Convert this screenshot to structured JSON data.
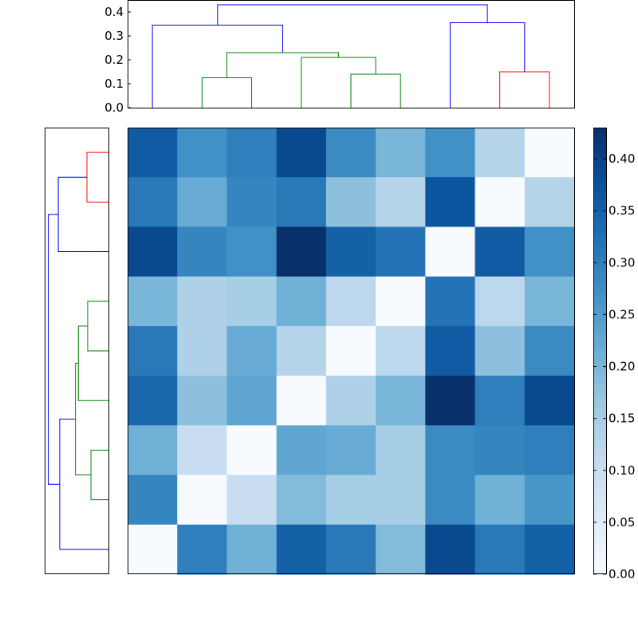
{
  "chart_data": {
    "type": "heatmap",
    "title": "",
    "rows": 9,
    "cols": 9,
    "values": [
      [
        0.36,
        0.27,
        0.3,
        0.39,
        0.28,
        0.2,
        0.27,
        0.13,
        0.0
      ],
      [
        0.31,
        0.22,
        0.29,
        0.31,
        0.18,
        0.13,
        0.37,
        0.0,
        0.13
      ],
      [
        0.39,
        0.29,
        0.27,
        0.43,
        0.35,
        0.32,
        0.0,
        0.36,
        0.27
      ],
      [
        0.2,
        0.14,
        0.15,
        0.21,
        0.12,
        0.0,
        0.32,
        0.12,
        0.2
      ],
      [
        0.31,
        0.14,
        0.22,
        0.13,
        0.0,
        0.12,
        0.36,
        0.18,
        0.28
      ],
      [
        0.34,
        0.18,
        0.23,
        0.0,
        0.14,
        0.2,
        0.43,
        0.3,
        0.39
      ],
      [
        0.21,
        0.1,
        0.0,
        0.23,
        0.22,
        0.15,
        0.28,
        0.29,
        0.3
      ],
      [
        0.29,
        0.0,
        0.1,
        0.19,
        0.15,
        0.15,
        0.28,
        0.21,
        0.26
      ],
      [
        0.0,
        0.3,
        0.21,
        0.35,
        0.31,
        0.19,
        0.39,
        0.31,
        0.35
      ]
    ],
    "colormap": "Blues",
    "vmin": 0,
    "vmax": 0.43,
    "colorbar_ticks": [
      "0.00",
      "0.05",
      "0.10",
      "0.15",
      "0.20",
      "0.25",
      "0.30",
      "0.35",
      "0.40"
    ],
    "top_dendrogram": {
      "yticks": [
        "0.0",
        "0.1",
        "0.2",
        "0.3",
        "0.4"
      ],
      "ylim": [
        0,
        0.45
      ],
      "links": [
        {
          "a": 1,
          "ah": 0,
          "b": 2,
          "bh": 0,
          "h": 0.125,
          "color": "#008000"
        },
        {
          "a": 4,
          "ah": 0,
          "b": 5,
          "bh": 0,
          "h": 0.14,
          "color": "#008000"
        },
        {
          "a": 3,
          "ah": 0,
          "b": 4.5,
          "bh": 0.14,
          "h": 0.21,
          "color": "#008000"
        },
        {
          "a": 1.5,
          "ah": 0.125,
          "b": 3.75,
          "bh": 0.21,
          "h": 0.23,
          "color": "#008000"
        },
        {
          "a": 0,
          "ah": 0,
          "b": 2.625,
          "bh": 0.23,
          "h": 0.345,
          "color": "#0000ff"
        },
        {
          "a": 7,
          "ah": 0,
          "b": 8,
          "bh": 0,
          "h": 0.15,
          "color": "#ff0000"
        },
        {
          "a": 6,
          "ah": 0,
          "b": 7.5,
          "bh": 0.15,
          "h": 0.355,
          "color": "#0000ff"
        },
        {
          "a": 1.3125,
          "ah": 0.345,
          "b": 6.75,
          "bh": 0.355,
          "h": 0.43,
          "color": "#0000ff"
        }
      ]
    },
    "left_dendrogram": {
      "xlim": [
        0,
        0.445
      ],
      "links": [
        {
          "a": 0,
          "ah": 0,
          "b": 1,
          "bh": 0,
          "h": 0.15,
          "color": "#ff0000"
        },
        {
          "a": 0.5,
          "ah": 0.15,
          "b": 2,
          "bh": 0,
          "h": 0.35,
          "color": "#0000ff"
        },
        {
          "a": 3,
          "ah": 0,
          "b": 4,
          "bh": 0,
          "h": 0.145,
          "color": "#008000"
        },
        {
          "a": 3.5,
          "ah": 0.145,
          "b": 5,
          "bh": 0,
          "h": 0.21,
          "color": "#008000"
        },
        {
          "a": 6,
          "ah": 0,
          "b": 7,
          "bh": 0,
          "h": 0.122,
          "color": "#008000"
        },
        {
          "a": 4.25,
          "ah": 0.21,
          "b": 6.5,
          "bh": 0.122,
          "h": 0.23,
          "color": "#008000"
        },
        {
          "a": 5.375,
          "ah": 0.23,
          "b": 8,
          "bh": 0,
          "h": 0.34,
          "color": "#0000ff"
        },
        {
          "a": 1.25,
          "ah": 0.35,
          "b": 6.6875,
          "bh": 0.34,
          "h": 0.42,
          "color": "#0000ff"
        }
      ]
    }
  }
}
